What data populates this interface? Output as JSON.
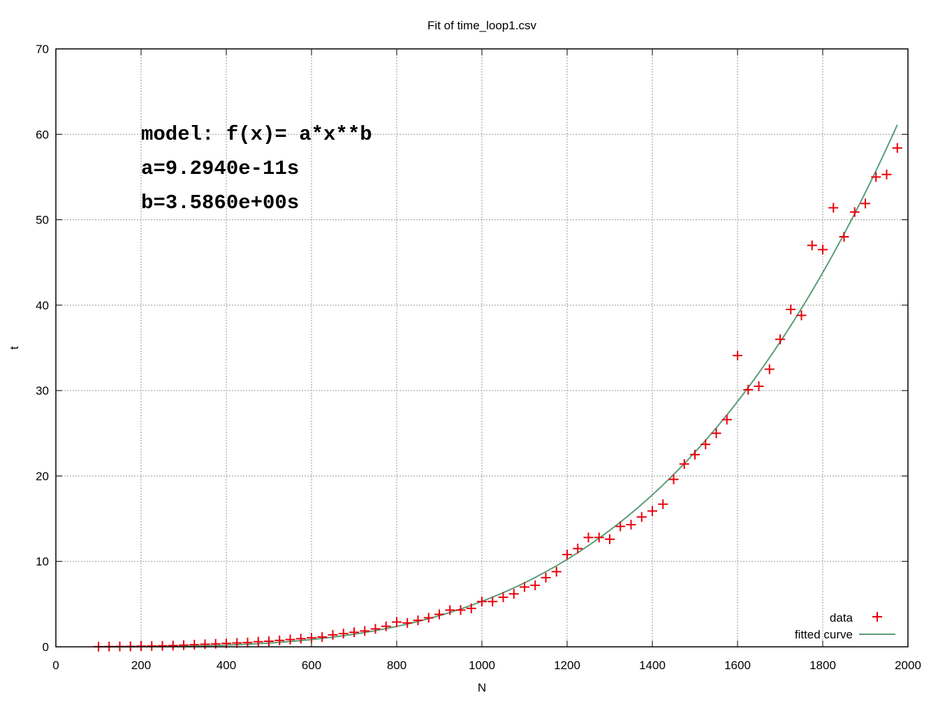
{
  "chart_data": {
    "type": "scatter",
    "title": "Fit of time_loop1.csv",
    "xlabel": "N",
    "ylabel": "t",
    "xlim": [
      0,
      2000
    ],
    "ylim": [
      0,
      70
    ],
    "xticks": [
      0,
      200,
      400,
      600,
      800,
      1000,
      1200,
      1400,
      1600,
      1800,
      2000
    ],
    "yticks": [
      0,
      10,
      20,
      30,
      40,
      50,
      60,
      70
    ],
    "grid": true,
    "legend_position": "bottom-right",
    "annotations": [
      "model: f(x)= a*x**b",
      "a=9.2940e-11s",
      "b=3.5860e+00s"
    ],
    "series": [
      {
        "name": "data",
        "kind": "points",
        "marker": "+",
        "color": "#e8000b",
        "x": [
          100,
          125,
          150,
          175,
          200,
          225,
          250,
          275,
          300,
          325,
          350,
          375,
          400,
          425,
          450,
          475,
          500,
          525,
          550,
          575,
          600,
          625,
          650,
          675,
          700,
          725,
          750,
          775,
          800,
          825,
          850,
          875,
          900,
          925,
          950,
          975,
          1000,
          1025,
          1050,
          1075,
          1100,
          1125,
          1150,
          1175,
          1200,
          1225,
          1250,
          1275,
          1300,
          1325,
          1350,
          1375,
          1400,
          1425,
          1450,
          1475,
          1500,
          1525,
          1550,
          1575,
          1600,
          1625,
          1650,
          1675,
          1700,
          1725,
          1750,
          1775,
          1800,
          1825,
          1850,
          1875,
          1900,
          1925,
          1950,
          1975
        ],
        "y": [
          0.02,
          0.03,
          0.04,
          0.05,
          0.08,
          0.1,
          0.12,
          0.15,
          0.2,
          0.25,
          0.3,
          0.35,
          0.4,
          0.45,
          0.5,
          0.6,
          0.65,
          0.75,
          0.85,
          0.95,
          1.05,
          1.15,
          1.4,
          1.55,
          1.7,
          1.85,
          2.1,
          2.4,
          2.9,
          2.8,
          3.1,
          3.4,
          3.8,
          4.3,
          4.3,
          4.5,
          5.3,
          5.3,
          5.8,
          6.2,
          7.0,
          7.2,
          8.1,
          8.8,
          10.8,
          11.5,
          12.8,
          12.8,
          12.6,
          14.1,
          14.3,
          15.2,
          15.9,
          16.7,
          19.6,
          21.4,
          22.5,
          23.7,
          25.0,
          26.6,
          34.1,
          30.1,
          30.5,
          32.5,
          36.0,
          39.5,
          38.8,
          47.0,
          46.5,
          51.4,
          48.0,
          50.9,
          51.9,
          55.0,
          55.3,
          58.4
        ]
      },
      {
        "name": "fitted curve",
        "kind": "line",
        "color": "#5b9c77",
        "model": "a*x**b",
        "a": 9.294e-11,
        "b": 3.586,
        "x_range": [
          100,
          1975
        ]
      }
    ]
  }
}
